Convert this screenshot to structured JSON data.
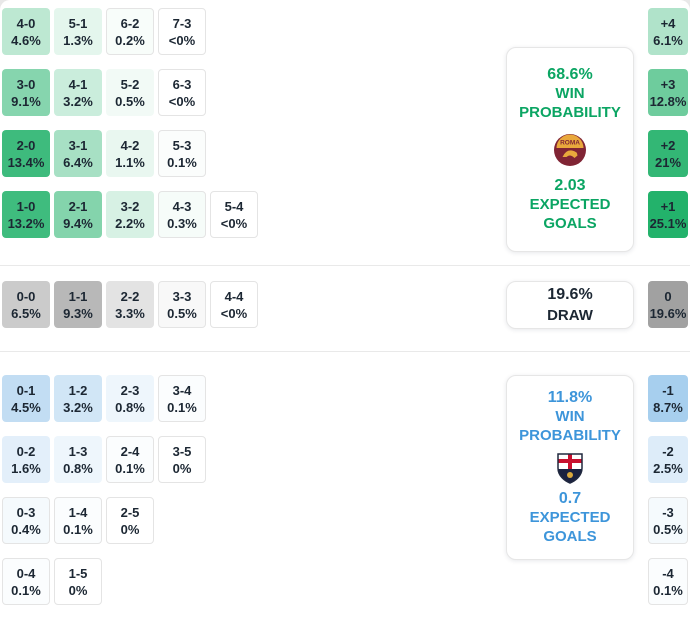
{
  "theme": {
    "home_base": "35,178,107",
    "draw_base": "125,125,125",
    "away_base": "64,150,219",
    "home_text": "#0ba563",
    "draw_text": "#1c2733",
    "away_text": "#3d95da",
    "cell_text": "#1c2733",
    "border": "#e4e4e4"
  },
  "chart_data": {
    "type": "heatmap",
    "description": "Correct score probability matrix with win/draw probabilities, expected goals and goal-difference distribution",
    "home": {
      "rows": [
        [
          {
            "s": "4-0",
            "p": "4.6%",
            "a": 0.3
          },
          {
            "s": "5-1",
            "p": "1.3%",
            "a": 0.12
          },
          {
            "s": "6-2",
            "p": "0.2%",
            "a": 0.03
          },
          {
            "s": "7-3",
            "p": "<0%",
            "a": 0
          }
        ],
        [
          {
            "s": "3-0",
            "p": "9.1%",
            "a": 0.55
          },
          {
            "s": "4-1",
            "p": "3.2%",
            "a": 0.24
          },
          {
            "s": "5-2",
            "p": "0.5%",
            "a": 0.06
          },
          {
            "s": "6-3",
            "p": "<0%",
            "a": 0
          }
        ],
        [
          {
            "s": "2-0",
            "p": "13.4%",
            "a": 0.88
          },
          {
            "s": "3-1",
            "p": "6.4%",
            "a": 0.4
          },
          {
            "s": "4-2",
            "p": "1.1%",
            "a": 0.1
          },
          {
            "s": "5-3",
            "p": "0.1%",
            "a": 0.02
          }
        ],
        [
          {
            "s": "1-0",
            "p": "13.2%",
            "a": 0.87
          },
          {
            "s": "2-1",
            "p": "9.4%",
            "a": 0.56
          },
          {
            "s": "3-2",
            "p": "2.2%",
            "a": 0.18
          },
          {
            "s": "4-3",
            "p": "0.3%",
            "a": 0.04
          },
          {
            "s": "5-4",
            "p": "<0%",
            "a": 0
          }
        ]
      ],
      "diffs": [
        {
          "s": "+4",
          "p": "6.1%",
          "a": 0.36
        },
        {
          "s": "+3",
          "p": "12.8%",
          "a": 0.66
        },
        {
          "s": "+2",
          "p": "21%",
          "a": 0.93
        },
        {
          "s": "+1",
          "p": "25.1%",
          "a": 1
        }
      ],
      "panel": {
        "pct": "68.6%",
        "label1": "WIN",
        "label2": "PROBABILITY",
        "crest": "roma-crest",
        "xg": "2.03",
        "xg_label1": "EXPECTED",
        "xg_label2": "GOALS"
      }
    },
    "draw": {
      "rows": [
        [
          {
            "s": "0-0",
            "p": "6.5%",
            "a": 0.4
          },
          {
            "s": "1-1",
            "p": "9.3%",
            "a": 0.55
          },
          {
            "s": "2-2",
            "p": "3.3%",
            "a": 0.21
          },
          {
            "s": "3-3",
            "p": "0.5%",
            "a": 0.05
          },
          {
            "s": "4-4",
            "p": "<0%",
            "a": 0
          }
        ]
      ],
      "diffs": [
        {
          "s": "0",
          "p": "19.6%",
          "a": 0.72
        }
      ],
      "panel": {
        "pct": "19.6%",
        "label": "DRAW"
      }
    },
    "away": {
      "rows": [
        [
          {
            "s": "0-1",
            "p": "4.5%",
            "a": 0.32
          },
          {
            "s": "1-2",
            "p": "3.2%",
            "a": 0.24
          },
          {
            "s": "2-3",
            "p": "0.8%",
            "a": 0.09
          },
          {
            "s": "3-4",
            "p": "0.1%",
            "a": 0.02
          }
        ],
        [
          {
            "s": "0-2",
            "p": "1.6%",
            "a": 0.15
          },
          {
            "s": "1-3",
            "p": "0.8%",
            "a": 0.09
          },
          {
            "s": "2-4",
            "p": "0.1%",
            "a": 0.02
          },
          {
            "s": "3-5",
            "p": "0%",
            "a": 0
          }
        ],
        [
          {
            "s": "0-3",
            "p": "0.4%",
            "a": 0.05
          },
          {
            "s": "1-4",
            "p": "0.1%",
            "a": 0.02
          },
          {
            "s": "2-5",
            "p": "0%",
            "a": 0
          }
        ],
        [
          {
            "s": "0-4",
            "p": "0.1%",
            "a": 0.02
          },
          {
            "s": "1-5",
            "p": "0%",
            "a": 0
          }
        ]
      ],
      "diffs": [
        {
          "s": "-1",
          "p": "8.7%",
          "a": 0.46
        },
        {
          "s": "-2",
          "p": "2.5%",
          "a": 0.18
        },
        {
          "s": "-3",
          "p": "0.5%",
          "a": 0.05
        },
        {
          "s": "-4",
          "p": "0.1%",
          "a": 0.02
        }
      ],
      "panel": {
        "pct": "11.8%",
        "label1": "WIN",
        "label2": "PROBABILITY",
        "crest": "genoa-crest",
        "xg": "0.7",
        "xg_label1": "EXPECTED",
        "xg_label2": "GOALS"
      }
    }
  }
}
